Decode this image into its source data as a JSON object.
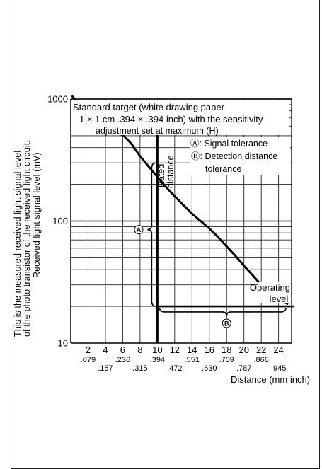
{
  "chart_data": {
    "type": "line",
    "y_scale": "log",
    "ylim": [
      10,
      1000
    ],
    "y_ticks": [
      {
        "value": 10,
        "label": "10"
      },
      {
        "value": 100,
        "label": "100"
      },
      {
        "value": 1000,
        "label": "1000"
      }
    ],
    "xlim": [
      0,
      25.5
    ],
    "x_ticks_mm": [
      "2",
      "4",
      "6",
      "8",
      "10",
      "12",
      "14",
      "16",
      "18",
      "20",
      "22",
      "24"
    ],
    "x_ticks_inch_row1": [
      ".079",
      ".236",
      ".394",
      ".551",
      ".709",
      ".866"
    ],
    "x_ticks_inch_row2": [
      ".157",
      ".315",
      ".472",
      ".630",
      ".787",
      ".945"
    ],
    "xlabel": "Distance (mm inch)",
    "ylabel_lines": [
      "This is the measured received light signal level",
      "of the photo transistor of the received light circuit.",
      "Received light signal level (mV)"
    ],
    "grid": true,
    "series": [
      {
        "x": [
          0.2,
          1,
          2,
          3,
          4,
          5,
          6,
          7,
          8,
          9,
          10,
          11,
          12,
          13,
          14,
          15,
          16,
          17,
          18,
          19,
          20,
          21,
          22,
          23,
          24,
          25
        ],
        "y": [
          1050,
          900,
          760,
          630,
          560,
          530,
          510,
          430,
          340,
          280,
          230,
          190,
          160,
          135,
          115,
          100,
          87,
          74,
          62,
          52,
          43,
          36,
          30,
          26,
          23,
          21
        ]
      }
    ],
    "rated_distance_mm": 10,
    "operating_level_mv": 20,
    "signal_tolerance_mv": [
      20,
      300
    ],
    "detection_tolerance_mm": [
      10,
      25
    ],
    "annotations": {
      "target_lines": [
        "Standard target (white drawing paper",
        "1 × 1 cm .394 × .394 inch) with the sensitivity",
        "adjustment set at maximum (H)"
      ],
      "legend_a": "Ⓐ: Signal tolerance",
      "legend_b_1": "Ⓑ: Detection distance",
      "legend_b_2": "tolerance",
      "rated_1": "Rated",
      "rated_2": "distance",
      "operating_1": "Operating",
      "operating_2": "level",
      "marker_a": "A",
      "marker_b": "B"
    }
  }
}
